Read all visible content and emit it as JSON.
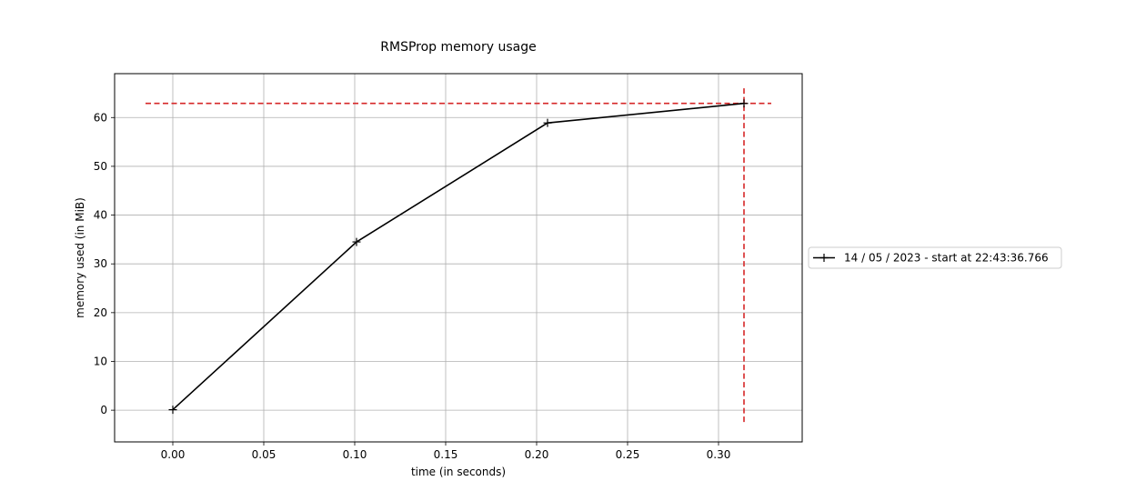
{
  "chart_data": {
    "type": "line",
    "title": "RMSProp memory usage",
    "xlabel": "time (in seconds)",
    "ylabel": "memory used (in MiB)",
    "xlim": [
      -0.032,
      0.346
    ],
    "ylim": [
      -6.5,
      69
    ],
    "x_ticks": [
      0.0,
      0.05,
      0.1,
      0.15,
      0.2,
      0.25,
      0.3
    ],
    "x_tick_labels": [
      "0.00",
      "0.05",
      "0.10",
      "0.15",
      "0.20",
      "0.25",
      "0.30"
    ],
    "y_ticks": [
      0,
      10,
      20,
      30,
      40,
      50,
      60
    ],
    "y_tick_labels": [
      "0",
      "10",
      "20",
      "30",
      "40",
      "50",
      "60"
    ],
    "grid": true,
    "legend_position": "outside-right",
    "series": [
      {
        "name": "14 / 05 / 2023 - start at 22:43:36.766",
        "color": "#000000",
        "marker": "plus",
        "x": [
          0.0,
          0.101,
          0.206,
          0.314
        ],
        "y": [
          0.1,
          34.5,
          58.9,
          62.9
        ]
      }
    ],
    "reference_lines": [
      {
        "orientation": "horizontal",
        "y": 62.9,
        "x_range": [
          -0.015,
          0.329
        ],
        "color": "#d62728",
        "style": "dashed"
      },
      {
        "orientation": "vertical",
        "x": 0.314,
        "y_range": [
          -3.0,
          66.0
        ],
        "color": "#d62728",
        "style": "dashed"
      }
    ]
  }
}
